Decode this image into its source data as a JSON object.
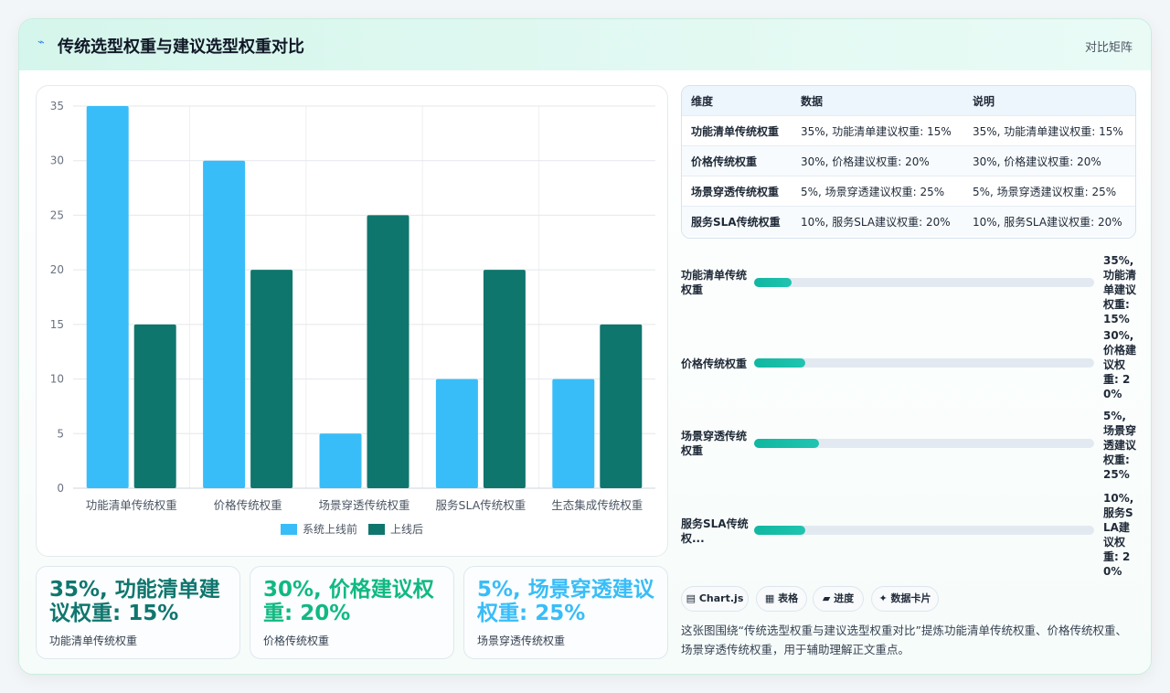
{
  "header": {
    "title": "传统选型权重与建议选型权重对比",
    "tag": "对比矩阵",
    "logo_icon": "sparkle-icon"
  },
  "chart_data": {
    "type": "bar",
    "categories": [
      "功能清单传统权重",
      "价格传统权重",
      "场景穿透传统权重",
      "服务SLA传统权重",
      "生态集成传统权重"
    ],
    "series": [
      {
        "name": "系统上线前",
        "values": [
          35,
          30,
          5,
          10,
          10
        ],
        "color": "#38bdf8"
      },
      {
        "name": "上线后",
        "values": [
          15,
          20,
          25,
          20,
          15
        ],
        "color": "#0f766e"
      }
    ],
    "ylim": [
      0,
      35
    ],
    "yticks": [
      0,
      5,
      10,
      15,
      20,
      25,
      30,
      35
    ],
    "grid": true,
    "legend": "bottom"
  },
  "table": {
    "headers": [
      "维度",
      "数据",
      "说明"
    ],
    "rows": [
      [
        "功能清单传统权重",
        "35%, 功能清单建议权重: 15%",
        "35%, 功能清单建议权重: 15%"
      ],
      [
        "价格传统权重",
        "30%, 价格建议权重: 20%",
        "30%, 价格建议权重: 20%"
      ],
      [
        "场景穿透传统权重",
        "5%, 场景穿透建议权重: 25%",
        "5%, 场景穿透建议权重: 25%"
      ],
      [
        "服务SLA传统权重",
        "10%, 服务SLA建议权重: 20%",
        "10%, 服务SLA建议权重: 20%"
      ]
    ]
  },
  "progress": [
    {
      "label": "功能清单传统权重",
      "value": "35%, 功能清单建议权重: 15%",
      "fraction": 0.11
    },
    {
      "label": "价格传统权重",
      "value": "30%, 价格建议权重: 20%",
      "fraction": 0.15
    },
    {
      "label": "场景穿透传统权重",
      "value": "5%, 场景穿透建议权重: 25%",
      "fraction": 0.19
    },
    {
      "label": "服务SLA传统权...",
      "value": "10%, 服务SLA建议权重: 20%",
      "fraction": 0.15
    }
  ],
  "kpis": [
    {
      "value": "35%, 功能清单建议权重: 15%",
      "label": "功能清单传统权重",
      "color": "#0f766e"
    },
    {
      "value": "30%, 价格建议权重: 20%",
      "label": "价格传统权重",
      "color": "#10b981"
    },
    {
      "value": "5%, 场景穿透建议权重: 25%",
      "label": "场景穿透传统权重",
      "color": "#38bdf8"
    }
  ],
  "chips": [
    {
      "icon": "chart-icon",
      "glyph": "▤",
      "label": "Chart.js"
    },
    {
      "icon": "table-icon",
      "glyph": "▦",
      "label": "表格"
    },
    {
      "icon": "progress-icon",
      "glyph": "▰",
      "label": "进度"
    },
    {
      "icon": "sparkle-icon",
      "glyph": "✦",
      "label": "数据卡片"
    }
  ],
  "description": "这张图围绕“传统选型权重与建议选型权重对比”提炼功能清单传统权重、价格传统权重、场景穿透传统权重，用于辅助理解正文重点。"
}
